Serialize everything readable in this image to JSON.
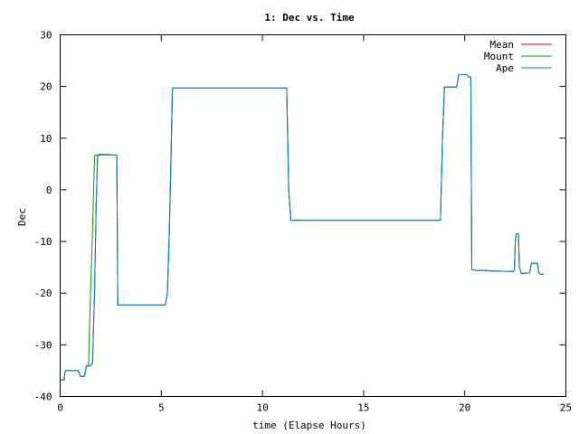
{
  "chart_data": {
    "type": "line",
    "title": "1: Dec vs. Time",
    "xlabel": "time (Elapse Hours)",
    "ylabel": "Dec",
    "xlim": [
      0,
      25
    ],
    "ylim": [
      -40,
      30
    ],
    "x_ticks": [
      "0",
      "5",
      "10",
      "15",
      "20",
      "25"
    ],
    "y_ticks": [
      "-40",
      "-30",
      "-20",
      "-10",
      "0",
      "10",
      "20",
      "30"
    ],
    "grid": false,
    "legend_position": "top-right",
    "series": [
      {
        "name": "Mean",
        "color": "#cc0000",
        "points": [
          [
            0.0,
            -36.8
          ],
          [
            0.2,
            -36.8
          ],
          [
            0.25,
            -35.0
          ],
          [
            0.9,
            -35.0
          ],
          [
            1.0,
            -36.1
          ],
          [
            1.2,
            -36.1
          ],
          [
            1.3,
            -34.1
          ],
          [
            1.5,
            -34.1
          ],
          [
            1.6,
            -33.5
          ],
          [
            1.7,
            -20.0
          ],
          [
            1.78,
            -3.0
          ],
          [
            1.85,
            6.6
          ],
          [
            2.0,
            6.8
          ],
          [
            2.8,
            6.7
          ],
          [
            2.85,
            -22.3
          ],
          [
            5.2,
            -22.3
          ],
          [
            5.3,
            -20.0
          ],
          [
            5.4,
            -8.0
          ],
          [
            5.5,
            10.0
          ],
          [
            5.55,
            19.7
          ],
          [
            11.2,
            19.7
          ],
          [
            11.3,
            0.0
          ],
          [
            11.4,
            -5.9
          ],
          [
            18.8,
            -5.9
          ],
          [
            18.9,
            10.0
          ],
          [
            19.0,
            19.9
          ],
          [
            19.6,
            19.9
          ],
          [
            19.7,
            22.3
          ],
          [
            20.1,
            22.3
          ],
          [
            20.2,
            21.8
          ],
          [
            20.3,
            21.8
          ],
          [
            20.35,
            -15.5
          ],
          [
            20.5,
            -15.5
          ],
          [
            20.6,
            -15.6
          ],
          [
            21.0,
            -15.6
          ],
          [
            21.2,
            -15.7
          ],
          [
            22.4,
            -15.8
          ],
          [
            22.45,
            -15.6
          ],
          [
            22.5,
            -10.0
          ],
          [
            22.55,
            -8.5
          ],
          [
            22.65,
            -8.5
          ],
          [
            22.7,
            -15.0
          ],
          [
            22.8,
            -16.2
          ],
          [
            23.2,
            -16.1
          ],
          [
            23.3,
            -14.2
          ],
          [
            23.6,
            -14.2
          ],
          [
            23.65,
            -16.0
          ],
          [
            23.75,
            -16.4
          ],
          [
            23.9,
            -16.3
          ]
        ]
      },
      {
        "name": "Mount",
        "color": "#00a000",
        "points": [
          [
            0.0,
            -36.8
          ],
          [
            0.2,
            -36.8
          ],
          [
            0.25,
            -35.0
          ],
          [
            0.9,
            -35.0
          ],
          [
            1.0,
            -36.1
          ],
          [
            1.2,
            -36.1
          ],
          [
            1.3,
            -34.1
          ],
          [
            1.4,
            -34.1
          ],
          [
            1.5,
            -20.0
          ],
          [
            1.6,
            -8.0
          ],
          [
            1.7,
            6.6
          ],
          [
            2.0,
            6.9
          ],
          [
            2.8,
            6.7
          ],
          [
            2.85,
            -22.3
          ],
          [
            5.2,
            -22.3
          ],
          [
            5.3,
            -20.0
          ],
          [
            5.4,
            -8.0
          ],
          [
            5.5,
            10.0
          ],
          [
            5.55,
            19.7
          ],
          [
            11.2,
            19.7
          ],
          [
            11.3,
            0.0
          ],
          [
            11.4,
            -5.9
          ],
          [
            18.8,
            -5.9
          ],
          [
            18.9,
            10.0
          ],
          [
            19.0,
            19.9
          ],
          [
            19.6,
            19.9
          ],
          [
            19.7,
            22.3
          ],
          [
            20.1,
            22.3
          ],
          [
            20.2,
            21.8
          ],
          [
            20.3,
            21.8
          ],
          [
            20.35,
            -15.5
          ],
          [
            20.5,
            -15.5
          ],
          [
            20.6,
            -15.6
          ],
          [
            21.0,
            -15.6
          ],
          [
            21.2,
            -15.7
          ],
          [
            22.4,
            -15.8
          ],
          [
            22.45,
            -15.6
          ],
          [
            22.5,
            -10.0
          ],
          [
            22.55,
            -8.5
          ],
          [
            22.65,
            -8.5
          ],
          [
            22.7,
            -15.0
          ],
          [
            22.8,
            -16.2
          ],
          [
            23.2,
            -16.1
          ],
          [
            23.3,
            -14.2
          ],
          [
            23.6,
            -14.2
          ],
          [
            23.65,
            -16.0
          ],
          [
            23.75,
            -16.4
          ],
          [
            23.9,
            -16.3
          ]
        ]
      },
      {
        "name": "Ape",
        "color": "#0080d0",
        "points": [
          [
            0.0,
            -36.8
          ],
          [
            0.2,
            -36.8
          ],
          [
            0.25,
            -35.0
          ],
          [
            0.9,
            -35.0
          ],
          [
            1.0,
            -36.1
          ],
          [
            1.2,
            -36.1
          ],
          [
            1.3,
            -34.1
          ],
          [
            1.5,
            -34.1
          ],
          [
            1.6,
            -33.5
          ],
          [
            1.7,
            -20.0
          ],
          [
            1.78,
            -3.0
          ],
          [
            1.85,
            6.6
          ],
          [
            2.0,
            6.8
          ],
          [
            2.8,
            6.7
          ],
          [
            2.85,
            -22.3
          ],
          [
            5.2,
            -22.3
          ],
          [
            5.3,
            -20.0
          ],
          [
            5.4,
            -8.0
          ],
          [
            5.5,
            10.0
          ],
          [
            5.55,
            19.7
          ],
          [
            11.2,
            19.7
          ],
          [
            11.3,
            0.0
          ],
          [
            11.4,
            -5.9
          ],
          [
            18.8,
            -5.9
          ],
          [
            18.9,
            10.0
          ],
          [
            19.0,
            19.9
          ],
          [
            19.6,
            19.9
          ],
          [
            19.7,
            22.3
          ],
          [
            20.1,
            22.3
          ],
          [
            20.2,
            21.8
          ],
          [
            20.3,
            21.8
          ],
          [
            20.35,
            -15.5
          ],
          [
            20.5,
            -15.5
          ],
          [
            20.6,
            -15.6
          ],
          [
            21.0,
            -15.6
          ],
          [
            21.2,
            -15.7
          ],
          [
            22.4,
            -15.8
          ],
          [
            22.45,
            -15.6
          ],
          [
            22.5,
            -10.0
          ],
          [
            22.55,
            -8.5
          ],
          [
            22.65,
            -8.5
          ],
          [
            22.7,
            -15.0
          ],
          [
            22.8,
            -16.2
          ],
          [
            23.2,
            -16.1
          ],
          [
            23.3,
            -14.2
          ],
          [
            23.6,
            -14.2
          ],
          [
            23.65,
            -16.0
          ],
          [
            23.75,
            -16.4
          ],
          [
            23.9,
            -16.3
          ]
        ]
      }
    ]
  }
}
